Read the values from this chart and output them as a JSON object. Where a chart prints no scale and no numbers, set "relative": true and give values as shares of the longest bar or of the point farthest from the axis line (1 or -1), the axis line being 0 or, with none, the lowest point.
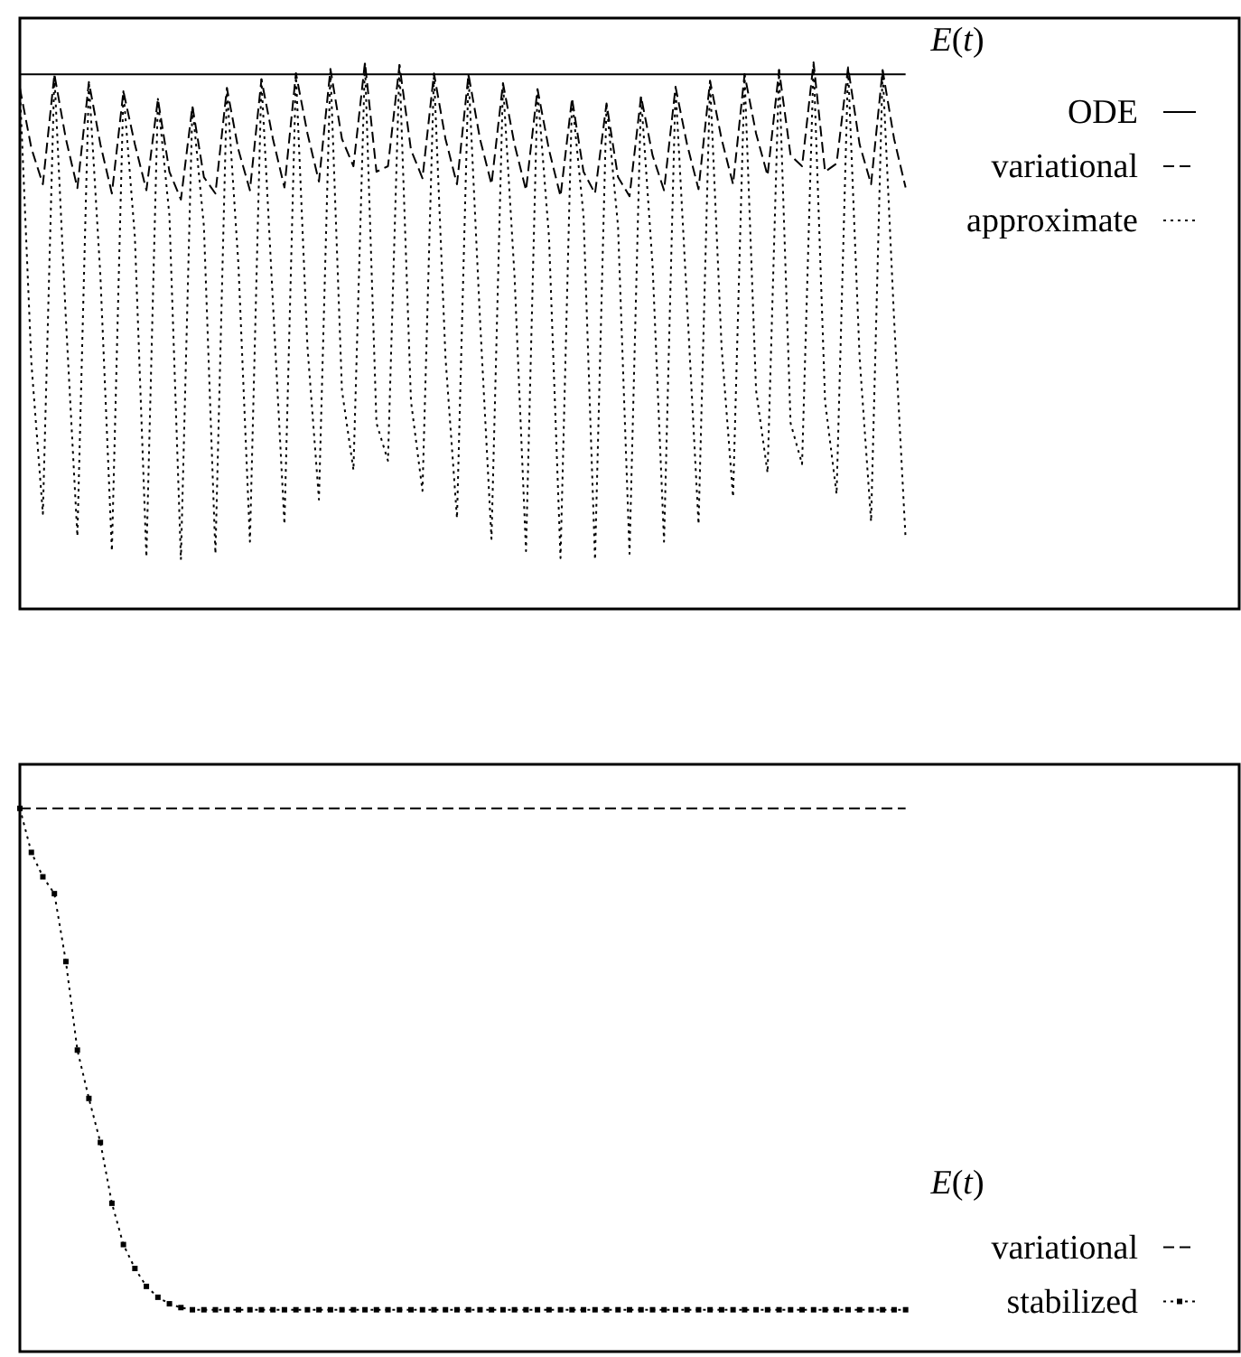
{
  "chart_data": [
    {
      "type": "line",
      "relative": true,
      "legend_title": "E(t)",
      "legend": "top right",
      "categories": [
        null,
        null,
        null,
        null,
        null,
        null,
        null,
        null,
        null,
        null,
        null,
        null,
        null,
        null,
        null,
        null,
        null,
        null,
        null,
        null,
        null,
        null,
        null,
        null,
        null,
        null,
        null,
        null,
        null,
        null,
        null,
        null,
        null,
        null,
        null,
        null,
        null,
        null,
        null,
        null,
        null,
        null,
        null,
        null,
        null,
        null,
        null,
        null,
        null,
        null,
        null,
        null,
        null,
        null,
        null,
        null,
        null,
        null,
        null,
        null,
        null,
        null,
        null,
        null,
        null,
        null,
        null,
        null,
        null,
        null,
        null,
        null,
        null,
        null,
        null,
        null,
        null,
        null,
        null,
        null,
        null,
        null,
        null,
        null,
        null,
        null,
        null,
        null,
        null,
        null,
        null,
        null,
        null,
        null,
        null,
        null,
        null,
        null,
        null,
        null,
        null,
        null,
        null,
        null,
        null,
        null,
        null
      ],
      "series": [
        {
          "name": "ODE",
          "color": "#000000",
          "line_style": "solid",
          "values": [
            0.978,
            0.978,
            0.978,
            0.978,
            0.978,
            0.978,
            0.978,
            0.978,
            0.978,
            0.978,
            0.978,
            0.978,
            0.978,
            0.978,
            0.978,
            0.978,
            0.978,
            0.978,
            0.978,
            0.978,
            0.978,
            0.978,
            0.978,
            0.978,
            0.978,
            0.978,
            0.978,
            0.978,
            0.978,
            0.978,
            0.978,
            0.978,
            0.978,
            0.978,
            0.978,
            0.978,
            0.978,
            0.978,
            0.978,
            0.978,
            0.978,
            0.978,
            0.978,
            0.978,
            0.978,
            0.978,
            0.978,
            0.978,
            0.978,
            0.978,
            0.978,
            0.978,
            0.978,
            0.978,
            0.978,
            0.978,
            0.978,
            0.978,
            0.978,
            0.978,
            0.978,
            0.978,
            0.978,
            0.978,
            0.978,
            0.978,
            0.978,
            0.978,
            0.978,
            0.978,
            0.978,
            0.978,
            0.978,
            0.978,
            0.978,
            0.978,
            0.978,
            0.978,
            null,
            null,
            null,
            null,
            null,
            null,
            null,
            null,
            null,
            null,
            null,
            null,
            null,
            null,
            null,
            null,
            null,
            null,
            null,
            null,
            null,
            null,
            null,
            null,
            null,
            null,
            null,
            null,
            null
          ]
        },
        {
          "name": "variational",
          "color": "#000000",
          "line_style": "dashed",
          "values": [
            0.953,
            0.843,
            0.777,
            0.978,
            0.86,
            0.77,
            0.964,
            0.85,
            0.76,
            0.947,
            0.85,
            0.766,
            0.933,
            0.8,
            0.749,
            0.92,
            0.79,
            0.76,
            0.953,
            0.84,
            0.766,
            0.969,
            0.86,
            0.771,
            0.98,
            0.87,
            0.782,
            0.988,
            0.86,
            0.81,
            1,
            0.8,
            0.81,
            0.995,
            0.84,
            0.788,
            0.98,
            0.86,
            0.777,
            0.978,
            0.86,
            0.777,
            0.962,
            0.85,
            0.766,
            0.951,
            0.84,
            0.755,
            0.934,
            0.8,
            0.76,
            0.925,
            0.79,
            0.755,
            0.938,
            0.83,
            0.766,
            0.955,
            0.85,
            0.768,
            0.966,
            0.86,
            0.777,
            0.978,
            0.87,
            0.793,
            0.986,
            0.83,
            0.81,
            1,
            0.8,
            0.815,
            0.991,
            0.85,
            0.777,
            0.986,
            0.86,
            0.771,
            null,
            null,
            null,
            null,
            null,
            null,
            null,
            null,
            null,
            null,
            null,
            null,
            null,
            null,
            null,
            null,
            null,
            null,
            null,
            null,
            null,
            null,
            null,
            null,
            null,
            null,
            null,
            null,
            null
          ]
        },
        {
          "name": "approximate",
          "color": "#000000",
          "line_style": "dotted",
          "values": [
            0.953,
            0.45,
            0.174,
            0.978,
            0.53,
            0.133,
            0.964,
            0.61,
            0.106,
            0.947,
            0.68,
            0.095,
            0.933,
            0.72,
            0.09,
            0.92,
            0.7,
            0.101,
            0.953,
            0.63,
            0.123,
            0.969,
            0.56,
            0.155,
            0.98,
            0.48,
            0.2,
            0.988,
            0.4,
            0.254,
            1,
            0.34,
            0.271,
            0.995,
            0.38,
            0.216,
            0.98,
            0.46,
            0.166,
            0.978,
            0.53,
            0.128,
            0.962,
            0.61,
            0.106,
            0.951,
            0.68,
            0.093,
            0.934,
            0.72,
            0.09,
            0.925,
            0.7,
            0.101,
            0.938,
            0.63,
            0.123,
            0.955,
            0.56,
            0.155,
            0.966,
            0.48,
            0.205,
            0.978,
            0.4,
            0.249,
            0.986,
            0.34,
            0.265,
            1,
            0.38,
            0.21,
            0.991,
            0.46,
            0.16,
            0.986,
            0.53,
            0.128,
            null,
            null,
            null,
            null,
            null,
            null,
            null,
            null,
            null,
            null,
            null,
            null,
            null,
            null,
            null,
            null,
            null,
            null,
            null,
            null,
            null,
            null,
            null,
            null,
            null,
            null,
            null,
            null,
            null
          ]
        }
      ]
    },
    {
      "type": "line",
      "relative": true,
      "legend_title": "E(t)",
      "legend": "right",
      "categories": [
        null,
        null,
        null,
        null,
        null,
        null,
        null,
        null,
        null,
        null,
        null,
        null,
        null,
        null,
        null,
        null,
        null,
        null,
        null,
        null,
        null,
        null,
        null,
        null,
        null,
        null,
        null,
        null,
        null,
        null,
        null,
        null,
        null,
        null,
        null,
        null,
        null,
        null,
        null,
        null,
        null,
        null,
        null,
        null,
        null,
        null,
        null,
        null,
        null,
        null,
        null,
        null,
        null,
        null,
        null,
        null,
        null,
        null,
        null,
        null,
        null,
        null,
        null,
        null,
        null,
        null,
        null,
        null,
        null,
        null,
        null,
        null,
        null,
        null,
        null,
        null,
        null,
        null,
        null,
        null,
        null,
        null,
        null,
        null,
        null,
        null,
        null,
        null,
        null,
        null,
        null,
        null,
        null,
        null,
        null,
        null,
        null,
        null,
        null,
        null,
        null,
        null,
        null,
        null,
        null,
        null,
        null
      ],
      "series": [
        {
          "name": "variational",
          "color": "#000000",
          "line_style": "dashed",
          "values": [
            1,
            1,
            1,
            1,
            1,
            1,
            1,
            1,
            1,
            1,
            1,
            1,
            1,
            1,
            1,
            1,
            1,
            1,
            1,
            1,
            1,
            1,
            1,
            1,
            1,
            1,
            1,
            1,
            1,
            1,
            1,
            1,
            1,
            1,
            1,
            1,
            1,
            1,
            1,
            1,
            1,
            1,
            1,
            1,
            1,
            1,
            1,
            1,
            1,
            1,
            1,
            1,
            1,
            1,
            1,
            1,
            1,
            1,
            1,
            1,
            1,
            1,
            1,
            1,
            1,
            1,
            1,
            1,
            1,
            1,
            1,
            1,
            1,
            1,
            1,
            1,
            1,
            1,
            null,
            null,
            null,
            null,
            null,
            null,
            null,
            null,
            null,
            null,
            null,
            null,
            null,
            null,
            null,
            null,
            null,
            null,
            null,
            null,
            null,
            null,
            null,
            null,
            null,
            null,
            null,
            null,
            null
          ]
        },
        {
          "name": "stabilized",
          "color": "#000000",
          "line_style": "dotted",
          "marker": "square",
          "values": [
            1,
            0.919,
            0.874,
            0.843,
            0.718,
            0.555,
            0.466,
            0.385,
            0.273,
            0.197,
            0.153,
            0.12,
            0.1,
            0.088,
            0.081,
            0.077,
            0.077,
            0.077,
            0.077,
            0.077,
            0.077,
            0.077,
            0.077,
            0.077,
            0.077,
            0.077,
            0.077,
            0.077,
            0.077,
            0.077,
            0.077,
            0.077,
            0.077,
            0.077,
            0.077,
            0.077,
            0.077,
            0.077,
            0.077,
            0.077,
            0.077,
            0.077,
            0.077,
            0.077,
            0.077,
            0.077,
            0.077,
            0.077,
            0.077,
            0.077,
            0.077,
            0.077,
            0.077,
            0.077,
            0.077,
            0.077,
            0.077,
            0.077,
            0.077,
            0.077,
            0.077,
            0.077,
            0.077,
            0.077,
            0.077,
            0.077,
            0.077,
            0.077,
            0.077,
            0.077,
            0.077,
            0.077,
            0.077,
            0.077,
            0.077,
            0.077,
            0.077,
            0.077,
            null,
            null,
            null,
            null,
            null,
            null,
            null,
            null,
            null,
            null,
            null,
            null,
            null,
            null,
            null,
            null,
            null,
            null,
            null,
            null,
            null,
            null,
            null,
            null,
            null,
            null,
            null,
            null,
            null
          ]
        }
      ]
    }
  ]
}
